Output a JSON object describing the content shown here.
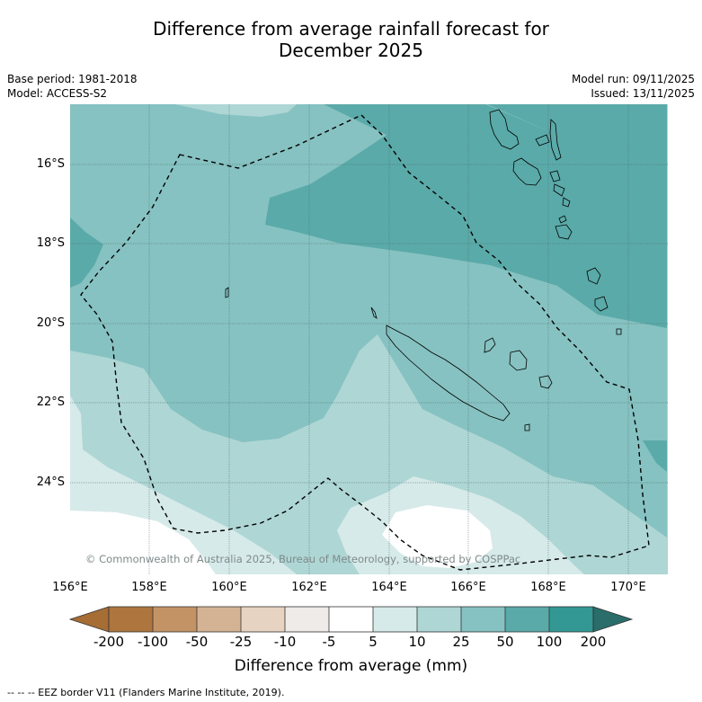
{
  "title_line1": "Difference from average rainfall forecast for",
  "title_line2": "December 2025",
  "meta": {
    "base_period": "Base period: 1981-2018",
    "model": "Model: ACCESS-S2",
    "model_run": "Model run: 09/11/2025",
    "issued": "Issued: 13/11/2025"
  },
  "map": {
    "lat_ticks": [
      "16°S",
      "18°S",
      "20°S",
      "22°S",
      "24°S"
    ],
    "lon_ticks": [
      "156°E",
      "158°E",
      "160°E",
      "162°E",
      "164°E",
      "166°E",
      "168°E",
      "170°E"
    ],
    "copyright": "© Commonwealth of Australia 2025, Bureau of Meteorology, supported by COSPPac",
    "colors": {
      "c_10_25": "#aed6d5",
      "c_25_50": "#86c2c1",
      "c_50_100": "#5aaaa9",
      "c_5_10": "#d6eae9",
      "c_m5_5": "#ffffff"
    }
  },
  "colorbar": {
    "ticks": [
      "-200",
      "-100",
      "-50",
      "-25",
      "-10",
      "-5",
      "5",
      "10",
      "25",
      "50",
      "100",
      "200"
    ],
    "colors": [
      "#a66d35",
      "#ae753e",
      "#c39366",
      "#d4b395",
      "#e7d3c1",
      "#eeebe8",
      "#ffffff",
      "#d6eae9",
      "#aed6d5",
      "#86c2c1",
      "#5aaaa9",
      "#339894",
      "#2a6d6b"
    ],
    "label": "Difference from average (mm)"
  },
  "legend_note": "-- -- -- EEZ border V11 (Flanders Marine Institute, 2019)."
}
